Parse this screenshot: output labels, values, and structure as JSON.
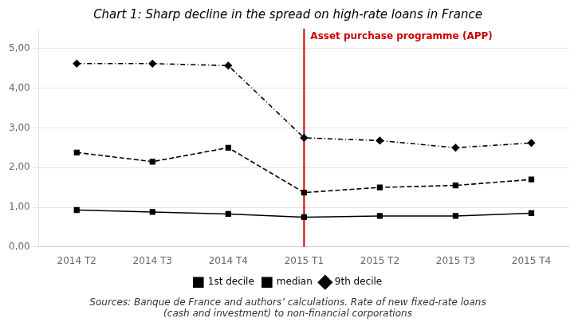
{
  "chart_data": {
    "type": "line",
    "title": "Chart 1: Sharp decline in the spread on high-rate loans in France",
    "subtitle": "Sources: Banque de France and authors’ calculations. Rate of new fixed-rate loans\n(cash and investment) to non-financial corporations",
    "categories": [
      "2014 T2",
      "2014 T3",
      "2014 T4",
      "2015 T1",
      "2015 T2",
      "2015 T3",
      "2015 T4"
    ],
    "series": [
      {
        "name": "1st decile",
        "color": "#000000",
        "marker": "square",
        "line_style": "solid",
        "values": [
          0.93,
          0.88,
          0.83,
          0.75,
          0.78,
          0.78,
          0.85
        ]
      },
      {
        "name": "median",
        "color": "#000000",
        "marker": "square",
        "line_style": "dashed",
        "values": [
          2.38,
          2.15,
          2.5,
          1.37,
          1.5,
          1.55,
          1.7
        ]
      },
      {
        "name": "9th decile",
        "color": "#000000",
        "marker": "diamond",
        "line_style": "dashdot",
        "values": [
          4.62,
          4.62,
          4.57,
          2.75,
          2.68,
          2.5,
          2.62
        ]
      }
    ],
    "ylim": [
      0.0,
      5.5
    ],
    "yticks": [
      {
        "value": 0.0,
        "label": "0,00"
      },
      {
        "value": 1.0,
        "label": "1,00"
      },
      {
        "value": 2.0,
        "label": "2,00"
      },
      {
        "value": 3.0,
        "label": "3,00"
      },
      {
        "value": 4.0,
        "label": "4,00"
      },
      {
        "value": 5.0,
        "label": "5,00"
      }
    ],
    "vlines": [
      {
        "x": "2015 T1",
        "color": "#cc0000",
        "label": "Asset purchase programme (APP)"
      }
    ],
    "grid": "y",
    "legend": "bottom"
  }
}
